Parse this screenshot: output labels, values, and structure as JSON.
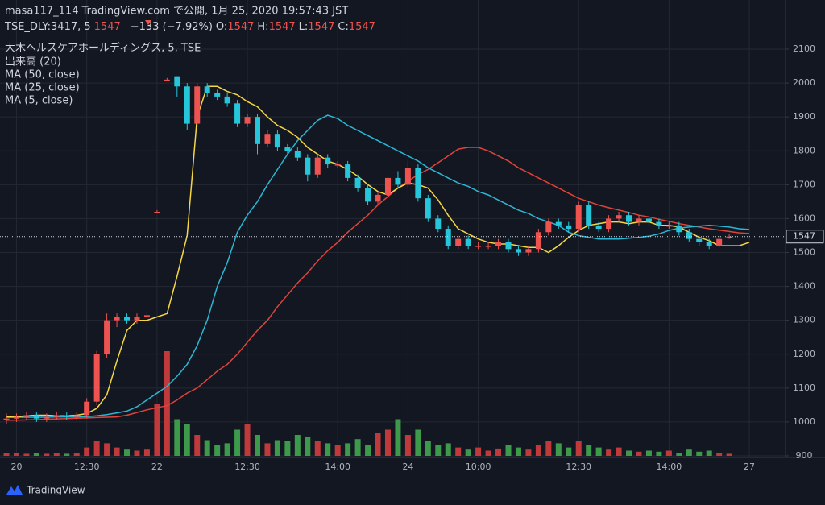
{
  "header": {
    "line1": "masa117_114 TradingView.com で公開, 1月 25, 2020 19:57:43 JST",
    "symbol": "TSE_DLY:3417, 5",
    "last": "1547",
    "change": "−133 (−7.92%)",
    "o_label": "O:",
    "o": "1547",
    "h_label": "H:",
    "h": "1547",
    "l_label": "L:",
    "l": "1547",
    "c_label": "C:",
    "c": "1547"
  },
  "footer": {
    "logo": "TradingView"
  },
  "chart_data": {
    "type": "candlestick",
    "title": "大木ヘルスケアホールディングス, 5, TSE",
    "categories": [
      null,
      "20",
      null,
      null,
      null,
      null,
      null,
      null,
      "12:30",
      null,
      null,
      null,
      null,
      null,
      null,
      "22",
      null,
      null,
      null,
      null,
      null,
      null,
      null,
      null,
      "12:30",
      null,
      null,
      null,
      null,
      null,
      null,
      null,
      null,
      "14:00",
      null,
      null,
      null,
      null,
      null,
      null,
      "24",
      null,
      null,
      null,
      null,
      null,
      null,
      "10:00",
      null,
      null,
      null,
      null,
      null,
      null,
      null,
      null,
      null,
      "12:30",
      null,
      null,
      null,
      null,
      null,
      null,
      null,
      null,
      "14:00",
      null,
      null,
      null,
      null,
      null,
      null,
      null,
      "27"
    ],
    "open": [
      1005,
      1010,
      1015,
      1020,
      1010,
      1015,
      1020,
      1015,
      1020,
      1060,
      1200,
      1300,
      1310,
      1300,
      1310,
      1620,
      2010,
      2020,
      1990,
      1880,
      1990,
      1970,
      1960,
      1940,
      1880,
      1900,
      1820,
      1850,
      1810,
      1800,
      1780,
      1730,
      1780,
      1760,
      1760,
      1720,
      1690,
      1650,
      1670,
      1720,
      1700,
      1750,
      1660,
      1600,
      1570,
      1520,
      1540,
      1520,
      1520,
      1520,
      1530,
      1510,
      1500,
      1510,
      1560,
      1590,
      1580,
      1570,
      1640,
      1580,
      1570,
      1600,
      1610,
      1590,
      1600,
      1590,
      1580,
      1580,
      1560,
      1540,
      1530,
      1520,
      1547,
      null,
      null
    ],
    "high": [
      1025,
      1025,
      1030,
      1030,
      1025,
      1030,
      1030,
      1030,
      1070,
      1210,
      1320,
      1320,
      1320,
      1320,
      1325,
      1625,
      2015,
      2020,
      2000,
      2000,
      2000,
      1980,
      1970,
      1950,
      1910,
      1910,
      1860,
      1860,
      1820,
      1810,
      1790,
      1790,
      1790,
      1770,
      1770,
      1730,
      1700,
      1680,
      1730,
      1740,
      1770,
      1760,
      1670,
      1610,
      1580,
      1550,
      1550,
      1530,
      1530,
      1540,
      1540,
      1520,
      1520,
      1570,
      1600,
      1600,
      1590,
      1650,
      1650,
      1590,
      1610,
      1620,
      1620,
      1610,
      1610,
      1600,
      1590,
      1590,
      1570,
      1550,
      1540,
      1550,
      1555,
      null,
      null
    ],
    "low": [
      995,
      1000,
      1005,
      1000,
      1000,
      1005,
      1005,
      1005,
      1010,
      1050,
      1190,
      1280,
      1290,
      1290,
      1300,
      1615,
      2005,
      1960,
      1860,
      1870,
      1960,
      1950,
      1930,
      1870,
      1870,
      1790,
      1810,
      1800,
      1790,
      1770,
      1710,
      1720,
      1750,
      1750,
      1710,
      1680,
      1640,
      1640,
      1660,
      1690,
      1690,
      1650,
      1590,
      1560,
      1510,
      1510,
      1510,
      1510,
      1510,
      1510,
      1500,
      1490,
      1490,
      1500,
      1550,
      1570,
      1560,
      1560,
      1570,
      1560,
      1560,
      1590,
      1580,
      1580,
      1580,
      1570,
      1570,
      1550,
      1530,
      1520,
      1510,
      1515,
      1540,
      null,
      null
    ],
    "close": [
      1010,
      1015,
      1020,
      1010,
      1015,
      1020,
      1015,
      1020,
      1060,
      1200,
      1300,
      1310,
      1300,
      1310,
      1315,
      1620,
      2010,
      1990,
      1880,
      1990,
      1970,
      1960,
      1940,
      1880,
      1900,
      1820,
      1850,
      1810,
      1800,
      1780,
      1730,
      1780,
      1760,
      1760,
      1720,
      1690,
      1650,
      1670,
      1720,
      1700,
      1750,
      1660,
      1600,
      1570,
      1520,
      1540,
      1520,
      1520,
      1520,
      1530,
      1510,
      1500,
      1510,
      1560,
      1590,
      1580,
      1570,
      1640,
      1580,
      1570,
      1600,
      1610,
      1590,
      1600,
      1590,
      1580,
      1580,
      1560,
      1540,
      1530,
      1520,
      1540,
      1547,
      null,
      null
    ],
    "up_color": "#ef5350",
    "down_color": "#26c6da",
    "volume": {
      "name": "出来高 (20)",
      "up_color": "#c0393b",
      "down_color": "#3d9a4a",
      "values": [
        3,
        3,
        2,
        3,
        2,
        3,
        2,
        3,
        8,
        14,
        12,
        8,
        6,
        5,
        6,
        50,
        100,
        35,
        30,
        20,
        15,
        10,
        12,
        25,
        30,
        20,
        12,
        15,
        14,
        20,
        18,
        14,
        12,
        10,
        12,
        16,
        10,
        22,
        25,
        35,
        20,
        25,
        14,
        10,
        12,
        8,
        6,
        8,
        5,
        7,
        10,
        8,
        6,
        10,
        14,
        12,
        8,
        14,
        10,
        8,
        6,
        8,
        5,
        4,
        5,
        4,
        5,
        3,
        6,
        4,
        5,
        3,
        2,
        null,
        null
      ]
    },
    "series": [
      {
        "name": "MA (50, close)",
        "color": "#e0433a",
        "values": [
          1005,
          1005,
          1006,
          1007,
          1008,
          1009,
          1010,
          1011,
          1012,
          1013,
          1014,
          1015,
          1020,
          1028,
          1036,
          1042,
          1048,
          1065,
          1085,
          1100,
          1125,
          1150,
          1170,
          1200,
          1235,
          1270,
          1300,
          1340,
          1375,
          1410,
          1440,
          1475,
          1505,
          1530,
          1560,
          1585,
          1610,
          1640,
          1665,
          1690,
          1710,
          1730,
          1745,
          1765,
          1785,
          1805,
          1810,
          1810,
          1800,
          1785,
          1770,
          1750,
          1735,
          1720,
          1705,
          1690,
          1675,
          1660,
          1650,
          1640,
          1632,
          1625,
          1618,
          1610,
          1605,
          1598,
          1592,
          1585,
          1580,
          1575,
          1570,
          1566,
          1562,
          1558,
          1556
        ]
      },
      {
        "name": "MA (25, close)",
        "color": "#2bb7d4",
        "values": [
          1014,
          1014,
          1014,
          1014,
          1014,
          1015,
          1015,
          1015,
          1016,
          1018,
          1022,
          1027,
          1032,
          1045,
          1065,
          1085,
          1105,
          1135,
          1170,
          1225,
          1300,
          1400,
          1470,
          1560,
          1610,
          1650,
          1700,
          1745,
          1790,
          1830,
          1860,
          1890,
          1905,
          1895,
          1875,
          1860,
          1845,
          1830,
          1815,
          1800,
          1785,
          1770,
          1750,
          1735,
          1720,
          1705,
          1695,
          1680,
          1670,
          1655,
          1640,
          1625,
          1615,
          1600,
          1590,
          1580,
          1560,
          1550,
          1545,
          1540,
          1540,
          1540,
          1542,
          1545,
          1548,
          1555,
          1565,
          1572,
          1575,
          1578,
          1580,
          1578,
          1575,
          1570,
          1568
        ]
      },
      {
        "name": "MA (5, close)",
        "color": "#f5d742",
        "values": [
          1015,
          1015,
          1018,
          1020,
          1020,
          1018,
          1018,
          1020,
          1025,
          1040,
          1080,
          1180,
          1270,
          1300,
          1300,
          1310,
          1320,
          1430,
          1550,
          1900,
          1990,
          1990,
          1975,
          1965,
          1945,
          1930,
          1900,
          1875,
          1860,
          1840,
          1810,
          1790,
          1770,
          1760,
          1745,
          1725,
          1700,
          1680,
          1670,
          1690,
          1705,
          1700,
          1690,
          1655,
          1610,
          1570,
          1555,
          1540,
          1530,
          1525,
          1525,
          1520,
          1515,
          1515,
          1500,
          1520,
          1545,
          1565,
          1580,
          1585,
          1590,
          1590,
          1585,
          1590,
          1590,
          1580,
          1580,
          1575,
          1560,
          1545,
          1535,
          1520,
          1520,
          1520,
          1530
        ]
      }
    ],
    "last_price": 1547,
    "last_color": "#ef5350",
    "ylim": [
      900,
      2100
    ],
    "yticks": [
      900,
      1000,
      1100,
      1200,
      1300,
      1400,
      1500,
      1600,
      1700,
      1800,
      1900,
      2000,
      2100
    ],
    "grid": true
  }
}
